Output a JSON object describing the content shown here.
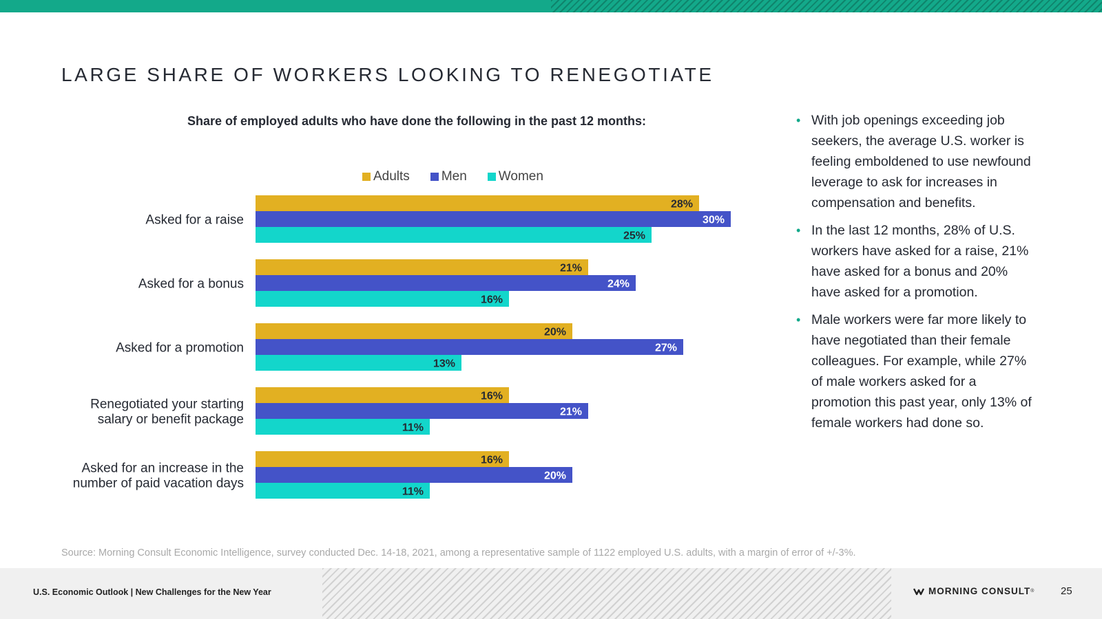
{
  "slide": {
    "title": "LARGE SHARE OF WORKERS LOOKING TO RENEGOTIATE",
    "subtitle": "Share of employed adults who have done the following in the past 12 months:",
    "bullets": [
      "With job openings exceeding job seekers, the average U.S. worker is feeling emboldened to use newfound leverage to ask for increases in compensation and benefits.",
      "In the last 12 months, 28% of U.S. workers have asked for a raise, 21% have asked for a bonus and 20% have asked for a promotion.",
      "Male workers were far more likely to have negotiated than their female colleagues. For example, while 27% of male workers asked for a promotion this past year, only 13% of female workers had done so."
    ],
    "bullet_symbol": "•",
    "source": "Source: Morning Consult Economic Intelligence, survey conducted Dec. 14-18, 2021, among a representative sample of 1122 employed U.S. adults, with a margin of error of +/-3%.",
    "footer_text": "U.S. Economic Outlook | New Challenges for the New Year",
    "brand": "MORNING CONSULT",
    "brand_mark": "®",
    "page_number": "25",
    "accent_color": "#13a98a"
  },
  "chart_data": {
    "type": "bar",
    "orientation": "horizontal",
    "categories": [
      [
        "Asked for a raise"
      ],
      [
        "Asked for a bonus"
      ],
      [
        "Asked for a promotion"
      ],
      [
        "Renegotiated your starting",
        "salary or benefit package"
      ],
      [
        "Asked for an increase in the",
        "number of paid vacation days"
      ]
    ],
    "series": [
      {
        "name": "Adults",
        "color": "#e2b022",
        "label_color": "#262a33",
        "values": [
          28,
          21,
          20,
          16,
          16
        ]
      },
      {
        "name": "Men",
        "color": "#4453c8",
        "label_color": "#ffffff",
        "values": [
          30,
          24,
          27,
          21,
          20
        ]
      },
      {
        "name": "Women",
        "color": "#13d6cb",
        "label_color": "#262a33",
        "values": [
          25,
          16,
          13,
          11,
          11
        ]
      }
    ],
    "value_suffix": "%",
    "legend_position": "top",
    "grid": false,
    "xlim": [
      0,
      35
    ]
  }
}
